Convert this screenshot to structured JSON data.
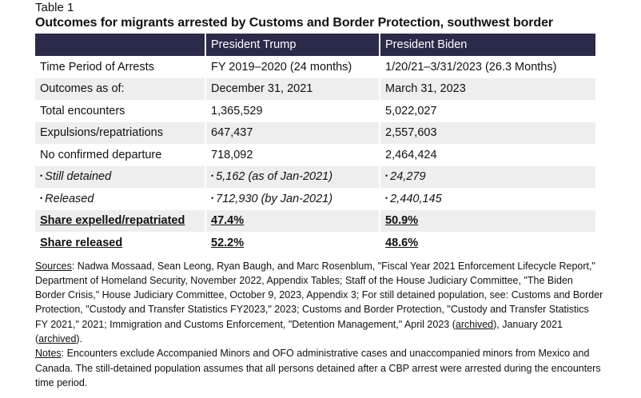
{
  "table_label": "Table 1",
  "title": "Outcomes for migrants arrested by Customs and Border Protection, southwest border",
  "headers": [
    "",
    "President Trump",
    "President Biden"
  ],
  "rows": [
    {
      "label": "Time Period of Arrests",
      "trump": "FY 2019–2020 (24 months)",
      "biden": "1/20/21–3/31/2023 (26.3 Months)"
    },
    {
      "label": "Outcomes as of:",
      "trump": "December 31, 2021",
      "biden": "March 31, 2023"
    },
    {
      "label": "Total encounters",
      "trump": "1,365,529",
      "biden": "5,022,027"
    },
    {
      "label": "Expulsions/repatriations",
      "trump": "647,437",
      "biden": "2,557,603"
    },
    {
      "label": "No confirmed departure",
      "trump": "718,092",
      "biden": "2,464,424"
    },
    {
      "label": "Still detained",
      "trump": "5,162 (as of Jan-2021)",
      "biden": "24,279"
    },
    {
      "label": "Released",
      "trump": "712,930 (by Jan-2021)",
      "biden": "2,440,145"
    },
    {
      "label": "Share expelled/repatriated",
      "trump": "47.4%",
      "biden": "50.9%"
    },
    {
      "label": "Share released",
      "trump": "52.2%",
      "biden": "48.6%"
    }
  ],
  "bullet": "•",
  "sources": {
    "label": "Sources",
    "text1": ": Nadwa Mossaad, Sean Leong, Ryan Baugh, and Marc Rosenblum, \"Fiscal Year 2021 Enforcement Lifecycle Report,\" Department of Homeland Security, November 2022, Appendix Tables; Staff of the House Judiciary Committee, \"The Biden Border Crisis,\" House Judiciary Committee, October 9, 2023, Appendix 3; For still detained population, see: Customs and Border Protection, \"Custody and Transfer Statistics FY2023,\" 2023; Customs and Border Protection, \"Custody and Transfer Statistics FY 2021,\" 2021; Immigration and Customs Enforcement, \"Detention Management,\" April 2023 (",
    "link1": "archived",
    "text2": "), January 2021 (",
    "link2": "archived",
    "text3": ")."
  },
  "notes": {
    "label": "Notes",
    "text": ": Encounters exclude Accompanied Minors and OFO administrative cases and unaccompanied minors from Mexico and Canada. The still-detained population assumes that all persons detained after a CBP arrest were arrested during the encounters time period."
  }
}
